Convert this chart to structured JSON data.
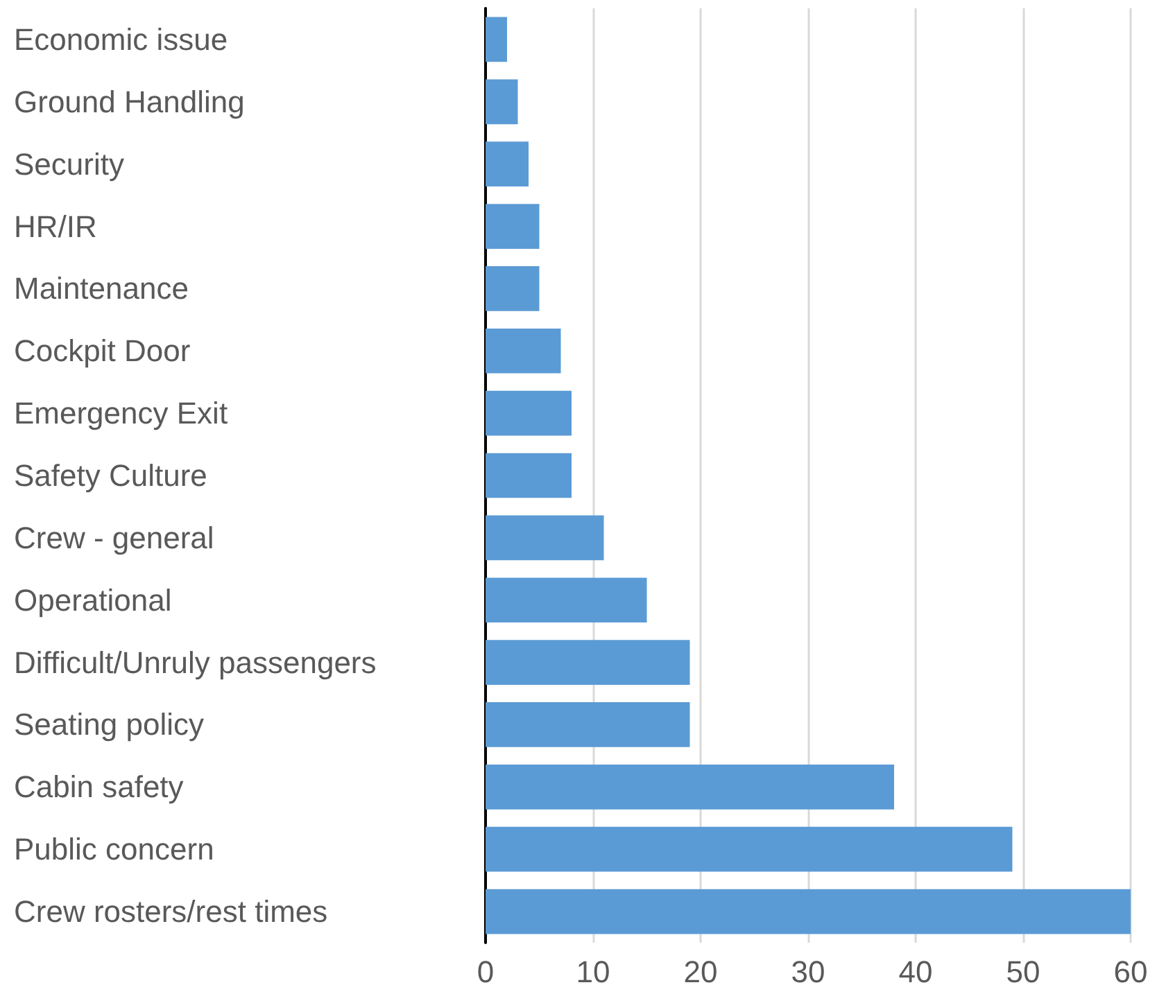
{
  "chart_data": {
    "type": "bar",
    "orientation": "horizontal",
    "categories": [
      "Economic issue",
      "Ground Handling",
      "Security",
      "HR/IR",
      "Maintenance",
      "Cockpit Door",
      "Emergency Exit",
      "Safety Culture",
      "Crew - general",
      "Operational",
      "Difficult/Unruly passengers",
      "Seating policy",
      "Cabin safety",
      "Public concern",
      "Crew rosters/rest times"
    ],
    "values": [
      2,
      3,
      4,
      5,
      5,
      7,
      8,
      8,
      11,
      15,
      19,
      19,
      38,
      49,
      60
    ],
    "color": "#5b9bd5",
    "xlim": [
      0,
      60
    ],
    "xticks": [
      0,
      10,
      20,
      30,
      40,
      50,
      60
    ],
    "grid": "x"
  }
}
